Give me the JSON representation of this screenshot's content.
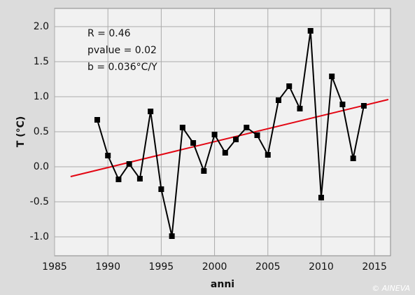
{
  "chart_data": {
    "type": "line",
    "x": [
      1989,
      1990,
      1991,
      1992,
      1993,
      1994,
      1995,
      1996,
      1997,
      1998,
      1999,
      2000,
      2001,
      2002,
      2003,
      2004,
      2005,
      2006,
      2007,
      2008,
      2009,
      2010,
      2011,
      2012,
      2013,
      2014
    ],
    "values": [
      0.67,
      0.16,
      -0.18,
      0.04,
      -0.17,
      0.79,
      -0.32,
      -0.99,
      0.56,
      0.34,
      -0.06,
      0.46,
      0.2,
      0.39,
      0.56,
      0.45,
      0.17,
      0.95,
      1.15,
      0.83,
      1.94,
      -0.44,
      1.29,
      0.89,
      0.12,
      0.87
    ],
    "color": "#000000",
    "trend": {
      "x": [
        1986.5,
        2016.3
      ],
      "values": [
        -0.14,
        0.96
      ],
      "color": "#e30613"
    },
    "xlabel": "anni",
    "ylabel": "T (°C)",
    "annotations": [
      "R = 0.46",
      "pvalue = 0.02",
      "b = 0.036°C/Y"
    ],
    "credit": "© AINEVA",
    "xlim": [
      1985,
      2016.5
    ],
    "xticks": [
      1985,
      1990,
      1995,
      2000,
      2005,
      2010,
      2015
    ],
    "ylim": [
      -1.27,
      2.26
    ],
    "yticks": [
      {
        "value": 2,
        "label": "2.0"
      },
      1.5,
      {
        "value": 1,
        "label": "1.0"
      },
      0.5,
      {
        "value": 0,
        "label": "0.0"
      },
      -0.5,
      {
        "value": -1,
        "label": "-1.0"
      }
    ],
    "grid": true
  }
}
